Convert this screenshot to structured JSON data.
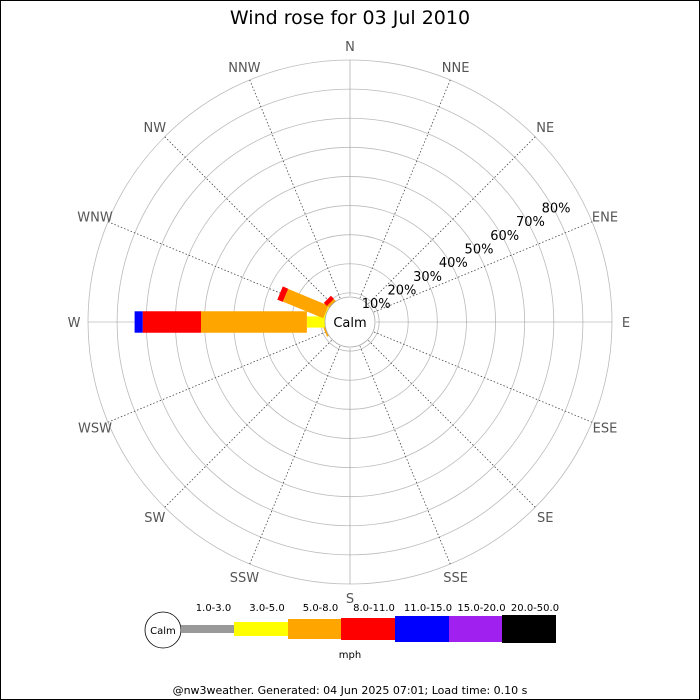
{
  "chart_data": {
    "type": "wind-rose",
    "title": "Wind rose for 03 Jul 2010",
    "directions": [
      "N",
      "NNE",
      "NE",
      "ENE",
      "E",
      "ESE",
      "SE",
      "SSE",
      "S",
      "SSW",
      "SW",
      "WSW",
      "W",
      "WNW",
      "NW",
      "NNW"
    ],
    "ring_labels": [
      "10%",
      "20%",
      "30%",
      "40%",
      "50%",
      "60%",
      "70%",
      "80%"
    ],
    "rmax_percent": 90,
    "center_label": "Calm",
    "calm_percent": 4,
    "unit": "mph",
    "speed_bins": [
      {
        "label": "1.0-3.0",
        "color": "#999999"
      },
      {
        "label": "3.0-5.0",
        "color": "#ffff00"
      },
      {
        "label": "5.0-8.0",
        "color": "#ffa500"
      },
      {
        "label": "8.0-11.0",
        "color": "#ff0000"
      },
      {
        "label": "11.0-15.0",
        "color": "#0000ff"
      },
      {
        "label": "15.0-20.0",
        "color": "#a020f0"
      },
      {
        "label": "20.0-50.0",
        "color": "#000000"
      }
    ],
    "series": [
      {
        "direction": "W",
        "cumulative": [
          null,
          14.8,
          51.2,
          71.2,
          74.0
        ]
      },
      {
        "direction": "WNW",
        "cumulative": [
          null,
          9.0,
          24.0,
          26.0
        ]
      },
      {
        "direction": "NW",
        "cumulative": [
          null,
          6.5,
          9.5,
          11.0
        ]
      },
      {
        "direction": "WSW",
        "cumulative": [
          null,
          8.5,
          9.2
        ]
      }
    ]
  },
  "footer": "@nw3weather. Generated: 04 Jun 2025 07:01; Load time: 0.10 s"
}
